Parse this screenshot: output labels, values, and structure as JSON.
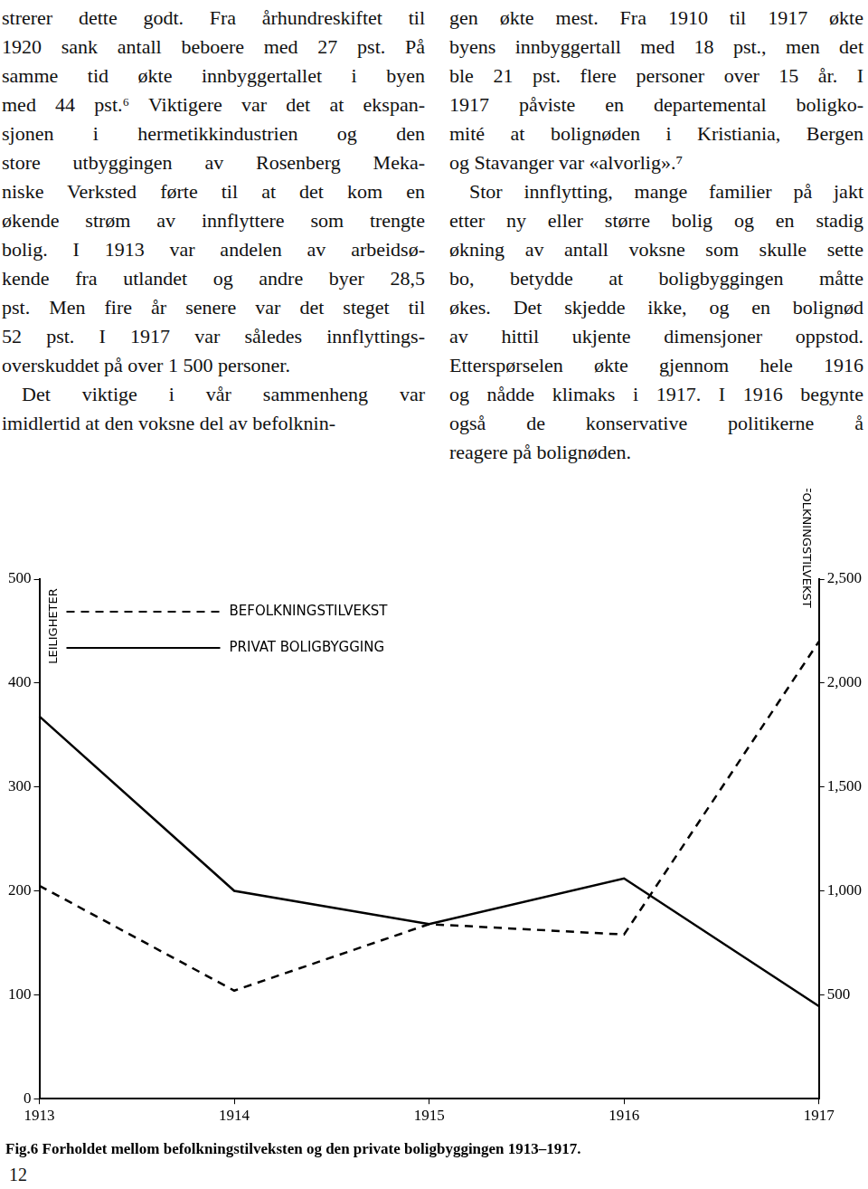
{
  "text": {
    "columns": [
      [
        [
          "strerer dette godt. Fra århundreskiftet til",
          "1920 sank antall beboere med 27 pst. På",
          "samme tid økte innbyggertallet i byen",
          "med 44 pst.⁶ Viktigere var det at ekspan-",
          "sjonen i hermetikkindustrien og den",
          "store utbyggingen av Rosenberg Meka-",
          "niske Verksted førte til at det kom en",
          "økende strøm av innflyttere som trengte",
          "bolig. I 1913 var andelen av arbeidsø-",
          "kende fra utlandet og andre byer 28,5",
          "pst. Men fire år senere var det steget til",
          "52 pst. I 1917 var således innflyttings-",
          "overskuddet på over 1 500 personer."
        ],
        [
          "Det viktige i vår sammenheng var",
          "imidlertid at den voksne del av befolknin-"
        ]
      ],
      [
        [
          "gen økte mest. Fra 1910 til 1917 økte",
          "byens innbyggertall med 18 pst., men det",
          "ble 21 pst. flere personer over 15 år. I",
          "1917 påviste en departemental boligko-",
          "mité at bolignøden i Kristiania, Bergen",
          "og Stavanger var «alvorlig».⁷"
        ],
        [
          "Stor innflytting, mange familier på jakt",
          "etter ny eller større bolig og en stadig",
          "økning av antall voksne som skulle sette",
          "bo, betydde at boligbyggingen måtte",
          "økes. Det skjedde ikke, og en bolignød",
          "av hittil ukjente dimensjoner oppstod.",
          "Etterspørselen økte gjennom hele 1916",
          "og nådde klimaks i 1917. I 1916 begynte",
          "også de konservative politikerne å",
          "reagere på bolignøden."
        ]
      ]
    ]
  },
  "chart_data": {
    "type": "line",
    "title": "Fig.6 Forholdet mellom befolkningstilveksten og den private boligbyggingen 1913–1917.",
    "y_label": "LEILIGHETER",
    "y2_label": "BEFOLKNINGSTILVEKST",
    "categories": [
      "1913",
      "1914",
      "1915",
      "1916",
      "1917"
    ],
    "series": [
      {
        "name": "BEFOLKNINGSTILVEKST",
        "color": "#000000",
        "line_style": "dashed",
        "axis": "y2",
        "values": [
          1025,
          520,
          840,
          790,
          2200
        ]
      },
      {
        "name": "PRIVAT BOLIGBYGGING",
        "color": "#000000",
        "line_style": "solid",
        "values": [
          368,
          200,
          168,
          212,
          89
        ]
      }
    ],
    "ylim": [
      0,
      500
    ],
    "yticks": [
      0,
      100,
      200,
      300,
      400,
      500
    ],
    "y2lim": [
      0,
      2500
    ],
    "y2ticks": [
      500,
      1000,
      1500,
      2000,
      2500
    ],
    "grid": false,
    "legend": "upper left"
  },
  "page_number": "12"
}
